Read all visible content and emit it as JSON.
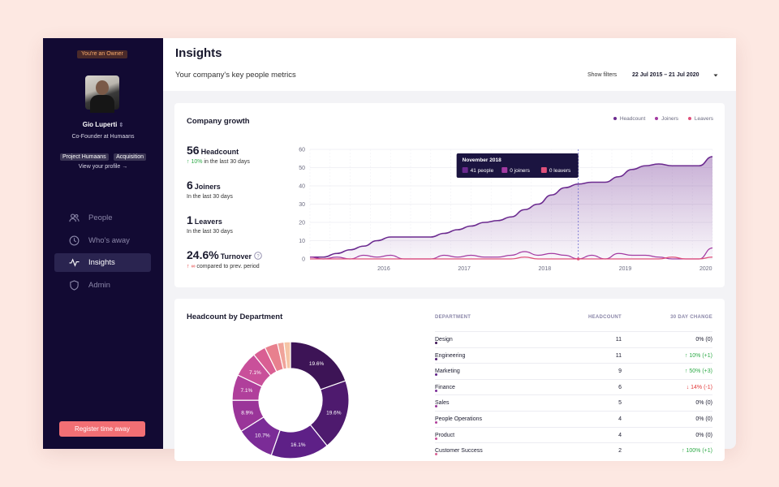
{
  "sidebar": {
    "owner_badge": "You're an Owner",
    "user_name": "Gio Luperti",
    "user_role": "Co-Founder at Humaans",
    "tags": [
      "Project Humaans",
      "Acquisition"
    ],
    "profile_link": "View your profile →",
    "nav": [
      {
        "label": "People",
        "icon": "people-icon",
        "active": false
      },
      {
        "label": "Who's away",
        "icon": "clock-icon",
        "active": false
      },
      {
        "label": "Insights",
        "icon": "pulse-icon",
        "active": true
      },
      {
        "label": "Admin",
        "icon": "shield-icon",
        "active": false
      }
    ],
    "register_button": "Register time away"
  },
  "header": {
    "title": "Insights",
    "subtitle": "Your company's key people metrics",
    "show_filters": "Show filters",
    "date_range": "22 Jul 2015 – 21 Jul 2020"
  },
  "growth": {
    "title": "Company growth",
    "legend": [
      "Headcount",
      "Joiners",
      "Leavers"
    ],
    "stats": {
      "headcount": {
        "value": "56",
        "label": "Headcount",
        "change": "↑ 10%",
        "sub": "in the last 30 days"
      },
      "joiners": {
        "value": "6",
        "label": "Joiners",
        "sub": "In the last 30 days"
      },
      "leavers": {
        "value": "1",
        "label": "Leavers",
        "sub": "In the last 30 days"
      },
      "turnover": {
        "value": "24.6%",
        "label": "Turnover",
        "change": "↑ ∞",
        "sub": "compared to prev. period"
      }
    },
    "tooltip": {
      "title": "November 2018",
      "headcount": "41 people",
      "joiners": "0 joiners",
      "leavers": "0 leavers"
    }
  },
  "colors": {
    "headcount": "#6b2a8f",
    "joiners": "#a33aa2",
    "leavers": "#e0507a",
    "sidebar": "#120a33",
    "accent": "#f26f74"
  },
  "chart_data": [
    {
      "type": "area",
      "title": "Company growth",
      "x": [
        "2015-07",
        "2015-09",
        "2015-11",
        "2016-01",
        "2016-03",
        "2016-05",
        "2016-07",
        "2016-09",
        "2016-11",
        "2017-01",
        "2017-03",
        "2017-05",
        "2017-07",
        "2017-09",
        "2017-11",
        "2018-01",
        "2018-03",
        "2018-05",
        "2018-07",
        "2018-09",
        "2018-11",
        "2019-01",
        "2019-03",
        "2019-05",
        "2019-07",
        "2019-09",
        "2019-11",
        "2020-01",
        "2020-03",
        "2020-05",
        "2020-07"
      ],
      "xticks": [
        "2016",
        "2017",
        "2018",
        "2019",
        "2020"
      ],
      "series": [
        {
          "name": "Headcount",
          "values": [
            1,
            1,
            3,
            5,
            7,
            10,
            12,
            12,
            12,
            12,
            14,
            16,
            18,
            20,
            21,
            23,
            27,
            30,
            35,
            39,
            41,
            42,
            42,
            45,
            49,
            51,
            52,
            51,
            51,
            51,
            56
          ]
        },
        {
          "name": "Joiners",
          "values": [
            1,
            0,
            1,
            0,
            2,
            1,
            2,
            0,
            0,
            0,
            2,
            1,
            2,
            1,
            1,
            2,
            4,
            2,
            3,
            2,
            0,
            2,
            0,
            3,
            2,
            2,
            1,
            0,
            0,
            0,
            6
          ]
        },
        {
          "name": "Leavers",
          "values": [
            0,
            0,
            0,
            0,
            0,
            0,
            0,
            0,
            0,
            0,
            0,
            0,
            0,
            0,
            0,
            0,
            1,
            0,
            0,
            0,
            0,
            0,
            0,
            0,
            0,
            0,
            0,
            1,
            0,
            0,
            1
          ]
        }
      ],
      "yticks": [
        0,
        10,
        20,
        30,
        40,
        50,
        60
      ],
      "ylim": [
        0,
        60
      ],
      "grid": true,
      "legend": "top-right",
      "highlight": "2018-11"
    },
    {
      "type": "pie",
      "title": "Headcount by Department",
      "slices": [
        {
          "value": 19.6,
          "label": "19.6%",
          "color": "#3d1456"
        },
        {
          "value": 19.6,
          "label": "19.6%",
          "color": "#4e1a6e"
        },
        {
          "value": 16.1,
          "label": "16.1%",
          "color": "#5e2087"
        },
        {
          "value": 10.7,
          "label": "10.7%",
          "color": "#7b2c97"
        },
        {
          "value": 8.9,
          "label": "8.9%",
          "color": "#9a3599"
        },
        {
          "value": 7.1,
          "label": "7.1%",
          "color": "#b03f9b"
        },
        {
          "value": 7.1,
          "label": "7.1%",
          "color": "#c9509a"
        },
        {
          "value": 3.6,
          "label": "",
          "color": "#d95f93"
        },
        {
          "value": 3.6,
          "label": "",
          "color": "#e8808e"
        },
        {
          "value": 1.8,
          "label": "",
          "color": "#f0a39a"
        },
        {
          "value": 1.8,
          "label": "",
          "color": "#f5c4a6"
        }
      ]
    }
  ],
  "departments": {
    "title": "Headcount by Department",
    "columns": [
      "DEPARTMENT",
      "HEADCOUNT",
      "30 DAY CHANGE"
    ],
    "rows": [
      {
        "name": "Design",
        "headcount": "11",
        "change": "0% (0)",
        "trend": "flat",
        "color": "#3d1456"
      },
      {
        "name": "Engineering",
        "headcount": "11",
        "change": "↑ 10% (+1)",
        "trend": "up",
        "color": "#4e1a6e"
      },
      {
        "name": "Marketing",
        "headcount": "9",
        "change": "↑ 50% (+3)",
        "trend": "up",
        "color": "#5e2087"
      },
      {
        "name": "Finance",
        "headcount": "6",
        "change": "↓ 14% (-1)",
        "trend": "down",
        "color": "#7b2c97"
      },
      {
        "name": "Sales",
        "headcount": "5",
        "change": "0% (0)",
        "trend": "flat",
        "color": "#9a3599"
      },
      {
        "name": "People Operations",
        "headcount": "4",
        "change": "0% (0)",
        "trend": "flat",
        "color": "#b03f9b"
      },
      {
        "name": "Product",
        "headcount": "4",
        "change": "0% (0)",
        "trend": "flat",
        "color": "#c9509a"
      },
      {
        "name": "Customer Success",
        "headcount": "2",
        "change": "↑ 100% (+1)",
        "trend": "up",
        "color": "#d95f93"
      }
    ]
  }
}
